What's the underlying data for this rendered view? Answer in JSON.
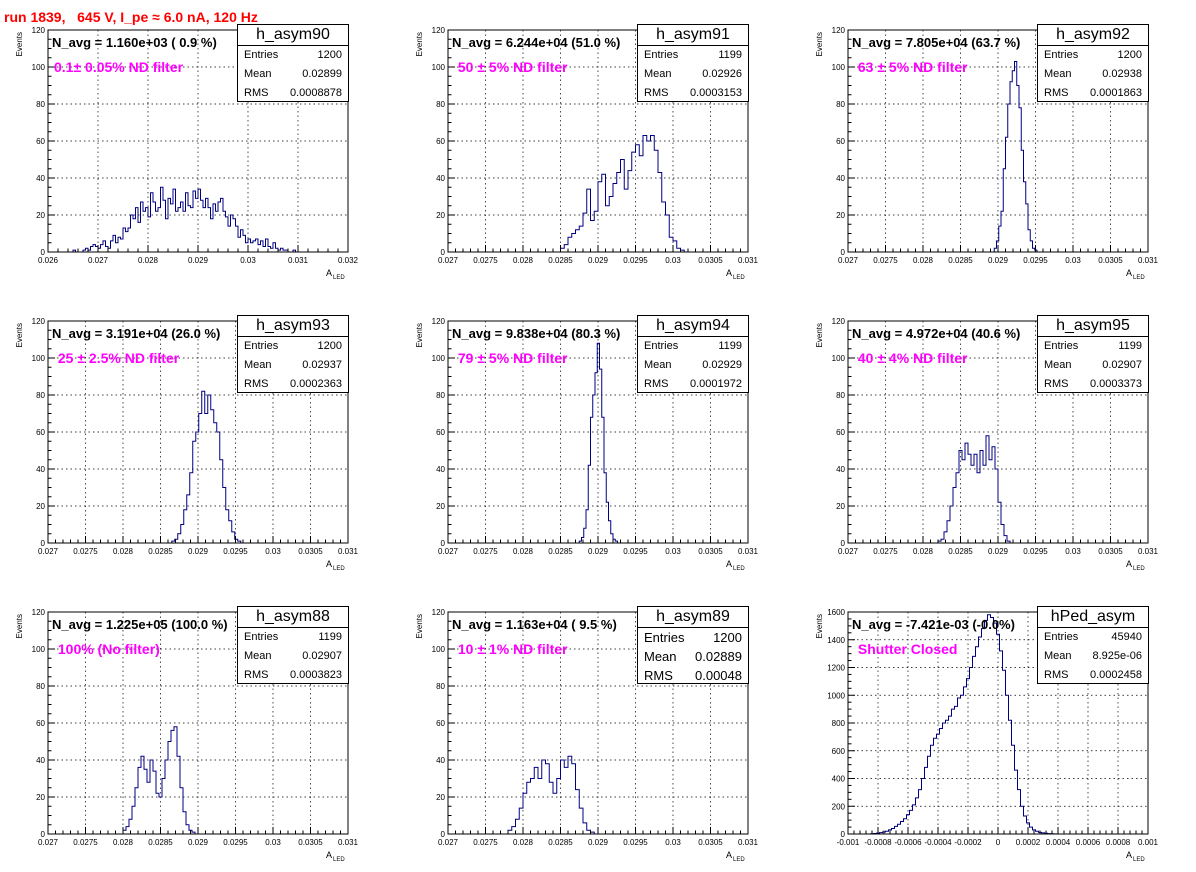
{
  "run_title": "run 1839,   645 V, I_pe ≈ 6.0 nA, 120 Hz",
  "colors": {
    "title": "#ff0000",
    "filter_text": "#ff00ff",
    "hist_line": "#000080",
    "grid": "#000000"
  },
  "stats_labels": {
    "entries": "Entries",
    "mean": "Mean",
    "rms": "RMS"
  },
  "chart_data": [
    {
      "type": "bar",
      "hist_name": "h_asym90",
      "n_avg": "N_avg = 1.160e+03 ( 0.9 %)",
      "filter": "0.1± 0.05% ND filter",
      "entries": "1200",
      "mean": "0.02899",
      "rms": "0.0008878",
      "big_stats": false,
      "xlabel": "A",
      "xlabel_sub": "LED",
      "ylabel": "Events",
      "xlim": [
        0.026,
        0.032
      ],
      "ylim": [
        0,
        120
      ],
      "grid": true,
      "xticks": [
        "0.026",
        "0.027",
        "0.028",
        "0.029",
        "0.03",
        "0.031",
        "0.032"
      ],
      "yticks": [
        "0",
        "20",
        "40",
        "60",
        "80",
        "100",
        "120"
      ],
      "bin_start": 0.0265,
      "bin_width": 5e-05,
      "values": [
        1,
        0,
        0,
        0,
        1,
        2,
        1,
        3,
        4,
        3,
        2,
        4,
        6,
        3,
        2,
        6,
        9,
        5,
        8,
        7,
        13,
        11,
        13,
        20,
        18,
        24,
        16,
        27,
        22,
        24,
        19,
        32,
        27,
        22,
        24,
        35,
        28,
        18,
        29,
        26,
        34,
        22,
        24,
        27,
        22,
        32,
        25,
        24,
        33,
        29,
        34,
        28,
        24,
        29,
        24,
        18,
        26,
        22,
        27,
        29,
        22,
        19,
        14,
        20,
        18,
        14,
        8,
        12,
        9,
        5,
        7,
        5,
        6,
        7,
        4,
        6,
        3,
        7,
        3,
        2,
        5,
        2,
        1,
        2,
        1,
        1,
        0,
        0,
        1,
        0,
        0,
        0,
        0,
        0,
        0,
        0,
        0
      ]
    },
    {
      "type": "bar",
      "hist_name": "h_asym91",
      "n_avg": "N_avg = 6.244e+04 (51.0 %)",
      "filter": " 50 ± 5% ND filter",
      "entries": "1199",
      "mean": "0.02926",
      "rms": "0.0003153",
      "big_stats": false,
      "xlabel": "A",
      "xlabel_sub": "LED",
      "ylabel": "Events",
      "xlim": [
        0.027,
        0.031
      ],
      "ylim": [
        0,
        120
      ],
      "grid": true,
      "xticks": [
        "0.027",
        "0.0275",
        "0.028",
        "0.0285",
        "0.029",
        "0.0295",
        "0.03",
        "0.0305",
        "0.031"
      ],
      "yticks": [
        "0",
        "20",
        "40",
        "60",
        "80",
        "100",
        "120"
      ],
      "bin_start": 0.02845,
      "bin_width": 5e-05,
      "values": [
        0,
        2,
        4,
        8,
        10,
        12,
        14,
        21,
        34,
        17,
        22,
        38,
        42,
        25,
        30,
        37,
        43,
        50,
        34,
        44,
        54,
        58,
        52,
        63,
        60,
        63,
        55,
        43,
        27,
        20,
        8,
        6,
        2,
        1,
        0
      ]
    },
    {
      "type": "bar",
      "hist_name": "h_asym92",
      "n_avg": "N_avg = 7.805e+04 (63.7 %)",
      "filter": " 63 ± 5% ND filter",
      "entries": "1200",
      "mean": "0.02938",
      "rms": "0.0001863",
      "big_stats": false,
      "xlabel": "A",
      "xlabel_sub": "LED",
      "ylabel": "Events",
      "xlim": [
        0.027,
        0.031
      ],
      "ylim": [
        0,
        120
      ],
      "grid": true,
      "xticks": [
        "0.027",
        "0.0275",
        "0.028",
        "0.0285",
        "0.029",
        "0.0295",
        "0.03",
        "0.0305",
        "0.031"
      ],
      "yticks": [
        "0",
        "20",
        "40",
        "60",
        "80",
        "100",
        "120"
      ],
      "bin_start": 0.02895,
      "bin_width": 3e-05,
      "values": [
        2,
        6,
        14,
        22,
        45,
        62,
        80,
        92,
        98,
        103,
        90,
        78,
        55,
        38,
        26,
        12,
        6,
        2,
        1
      ]
    },
    {
      "type": "bar",
      "hist_name": "h_asym93",
      "n_avg": "N_avg = 3.191e+04 (26.0 %)",
      "filter": " 25 ± 2.5% ND filter",
      "entries": "1200",
      "mean": "0.02937",
      "rms": "0.0002363",
      "big_stats": false,
      "xlabel": "A",
      "xlabel_sub": "LED",
      "ylabel": "Events",
      "xlim": [
        0.027,
        0.031
      ],
      "ylim": [
        0,
        120
      ],
      "grid": true,
      "xticks": [
        "0.027",
        "0.0275",
        "0.028",
        "0.0285",
        "0.029",
        "0.0295",
        "0.03",
        "0.0305",
        "0.031"
      ],
      "yticks": [
        "0",
        "20",
        "40",
        "60",
        "80",
        "100",
        "120"
      ],
      "bin_start": 0.02865,
      "bin_width": 4e-05,
      "values": [
        1,
        2,
        5,
        10,
        18,
        26,
        38,
        55,
        60,
        70,
        82,
        70,
        80,
        72,
        65,
        60,
        45,
        30,
        18,
        12,
        6,
        2,
        1
      ]
    },
    {
      "type": "bar",
      "hist_name": "h_asym94",
      "n_avg": "N_avg = 9.838e+04 (80.3 %)",
      "filter": " 79 ± 5% ND filter",
      "entries": "1199",
      "mean": "0.02929",
      "rms": "0.0001972",
      "big_stats": false,
      "xlabel": "A",
      "xlabel_sub": "LED",
      "ylabel": "Events",
      "xlim": [
        0.027,
        0.031
      ],
      "ylim": [
        0,
        120
      ],
      "grid": true,
      "xticks": [
        "0.027",
        "0.0275",
        "0.028",
        "0.0285",
        "0.029",
        "0.0295",
        "0.03",
        "0.0305",
        "0.031"
      ],
      "yticks": [
        "0",
        "20",
        "40",
        "60",
        "80",
        "100",
        "120"
      ],
      "bin_start": 0.02875,
      "bin_width": 3e-05,
      "values": [
        1,
        3,
        8,
        18,
        42,
        68,
        80,
        92,
        108,
        94,
        68,
        38,
        22,
        12,
        5,
        2,
        1
      ]
    },
    {
      "type": "bar",
      "hist_name": "h_asym95",
      "n_avg": "N_avg = 4.972e+04 (40.6 %)",
      "filter": " 40 ± 4% ND filter",
      "entries": "1199",
      "mean": "0.02907",
      "rms": "0.0003373",
      "big_stats": false,
      "xlabel": "A",
      "xlabel_sub": "LED",
      "ylabel": "Events",
      "xlim": [
        0.027,
        0.031
      ],
      "ylim": [
        0,
        120
      ],
      "grid": true,
      "xticks": [
        "0.027",
        "0.0275",
        "0.028",
        "0.0285",
        "0.029",
        "0.0295",
        "0.03",
        "0.0305",
        "0.031"
      ],
      "yticks": [
        "0",
        "20",
        "40",
        "60",
        "80",
        "100",
        "120"
      ],
      "bin_start": 0.0282,
      "bin_width": 4e-05,
      "values": [
        1,
        2,
        6,
        12,
        20,
        30,
        38,
        50,
        45,
        54,
        48,
        42,
        48,
        38,
        50,
        42,
        58,
        45,
        52,
        40,
        22,
        10,
        4,
        1
      ]
    },
    {
      "type": "bar",
      "hist_name": "h_asym88",
      "n_avg": "N_avg = 1.225e+05 (100.0 %)",
      "filter": " 100% (No filter)",
      "entries": "1199",
      "mean": "0.02907",
      "rms": "0.0003823",
      "big_stats": false,
      "xlabel": "A",
      "xlabel_sub": "LED",
      "ylabel": "Events",
      "xlim": [
        0.027,
        0.031
      ],
      "ylim": [
        0,
        120
      ],
      "grid": true,
      "xticks": [
        "0.027",
        "0.0275",
        "0.028",
        "0.0285",
        "0.029",
        "0.0295",
        "0.03",
        "0.0305",
        "0.031"
      ],
      "yticks": [
        "0",
        "20",
        "40",
        "60",
        "80",
        "100",
        "120"
      ],
      "bin_start": 0.028,
      "bin_width": 4e-05,
      "values": [
        2,
        4,
        8,
        15,
        25,
        36,
        42,
        35,
        28,
        40,
        34,
        22,
        20,
        30,
        40,
        50,
        56,
        58,
        42,
        25,
        12,
        5,
        2,
        1
      ]
    },
    {
      "type": "bar",
      "hist_name": "h_asym89",
      "n_avg": "N_avg = 1.163e+04 ( 9.5 %)",
      "filter": " 10 ± 1% ND filter",
      "entries": "1200",
      "mean": "0.02889",
      "rms": "0.00048",
      "big_stats": true,
      "xlabel": "A",
      "xlabel_sub": "LED",
      "ylabel": "Events",
      "xlim": [
        0.027,
        0.031
      ],
      "ylim": [
        0,
        120
      ],
      "grid": true,
      "xticks": [
        "0.027",
        "0.0275",
        "0.028",
        "0.0285",
        "0.029",
        "0.0295",
        "0.03",
        "0.0305",
        "0.031"
      ],
      "yticks": [
        "0",
        "20",
        "40",
        "60",
        "80",
        "100",
        "120"
      ],
      "bin_start": 0.0278,
      "bin_width": 5e-05,
      "values": [
        2,
        4,
        8,
        14,
        22,
        28,
        30,
        36,
        30,
        40,
        38,
        28,
        22,
        30,
        40,
        36,
        42,
        38,
        24,
        14,
        6,
        2,
        1
      ]
    },
    {
      "type": "bar",
      "hist_name": "hPed_asym",
      "n_avg": "N_avg = -7.421e-03 (-0.0%)",
      "filter": " Shutter Closed",
      "entries": "45940",
      "mean": "8.925e-06",
      "rms": "0.0002458",
      "big_stats": false,
      "xlabel": "A",
      "xlabel_sub": "LED",
      "ylabel": "Events",
      "xlim": [
        -0.001,
        0.001
      ],
      "ylim": [
        0,
        1600
      ],
      "grid": true,
      "xticks": [
        "-0.001",
        "-0.0008",
        "-0.0006",
        "-0.0004",
        "-0.0002",
        "0",
        "0.0002",
        "0.0004",
        "0.0006",
        "0.0008",
        "0.001"
      ],
      "yticks": [
        "0",
        "200",
        "400",
        "600",
        "800",
        "1000",
        "1200",
        "1400",
        "1600"
      ],
      "bin_start": -0.00085,
      "bin_width": 2e-05,
      "values": [
        2,
        4,
        6,
        10,
        14,
        20,
        30,
        40,
        55,
        70,
        90,
        110,
        140,
        170,
        210,
        260,
        320,
        400,
        480,
        560,
        640,
        690,
        720,
        760,
        800,
        820,
        850,
        900,
        920,
        980,
        1000,
        1060,
        1120,
        1200,
        1280,
        1350,
        1420,
        1480,
        1540,
        1580,
        1560,
        1520,
        1440,
        1320,
        1180,
        1000,
        820,
        640,
        460,
        320,
        200,
        130,
        80,
        50,
        30,
        20,
        12,
        8,
        5,
        3,
        2,
        1
      ]
    }
  ]
}
